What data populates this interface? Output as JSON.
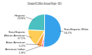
{
  "chart_data": {
    "type": "pie",
    "title": "Estimated 42.1 Million Uninsured People = 100.0",
    "categories": [
      "Non-Hispanic White",
      "American Indian",
      "Asian American",
      "Non-Hispanic\nAfrican American",
      "Hispanic"
    ],
    "values": [
      50.2,
      1.8,
      5.2,
      17.1,
      23.8
    ],
    "value_labels": [
      "50.2%",
      "1.8%",
      "5.2%",
      "17.1%",
      "23.8%"
    ],
    "data_labels": true
  }
}
